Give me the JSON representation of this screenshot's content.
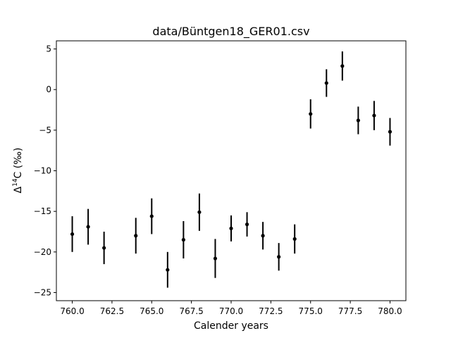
{
  "chart_data": {
    "type": "scatter",
    "title": "data/Büntgen18_GER01.csv",
    "xlabel": "Calender years",
    "ylabel_prefix": "Δ",
    "ylabel_sup": "14",
    "ylabel_suffix": "C (‰)",
    "xlim": [
      759.0,
      781.0
    ],
    "ylim": [
      -26.0,
      6.0
    ],
    "x_ticks": [
      760.0,
      762.5,
      765.0,
      767.5,
      770.0,
      772.5,
      775.0,
      777.5,
      780.0
    ],
    "x_tick_labels": [
      "760.0",
      "762.5",
      "765.0",
      "767.5",
      "770.0",
      "772.5",
      "775.0",
      "777.5",
      "780.0"
    ],
    "y_ticks": [
      5,
      0,
      -5,
      -10,
      -15,
      -20,
      -25
    ],
    "y_tick_labels": [
      "5",
      "0",
      "−5",
      "−10",
      "−15",
      "−20",
      "−25"
    ],
    "grid": false,
    "marker_color": "#000000",
    "points": [
      {
        "x": 760,
        "y": -17.8,
        "err": 2.2
      },
      {
        "x": 761,
        "y": -16.9,
        "err": 2.2
      },
      {
        "x": 762,
        "y": -19.5,
        "err": 2.0
      },
      {
        "x": 764,
        "y": -18.0,
        "err": 2.2
      },
      {
        "x": 765,
        "y": -15.6,
        "err": 2.2
      },
      {
        "x": 766,
        "y": -22.2,
        "err": 2.2
      },
      {
        "x": 767,
        "y": -18.5,
        "err": 2.3
      },
      {
        "x": 768,
        "y": -15.1,
        "err": 2.3
      },
      {
        "x": 769,
        "y": -20.8,
        "err": 2.4
      },
      {
        "x": 770,
        "y": -17.1,
        "err": 1.6
      },
      {
        "x": 771,
        "y": -16.6,
        "err": 1.5
      },
      {
        "x": 772,
        "y": -18.0,
        "err": 1.7
      },
      {
        "x": 773,
        "y": -20.6,
        "err": 1.7
      },
      {
        "x": 774,
        "y": -18.4,
        "err": 1.8
      },
      {
        "x": 775,
        "y": -3.0,
        "err": 1.8
      },
      {
        "x": 776,
        "y": 0.8,
        "err": 1.7
      },
      {
        "x": 777,
        "y": 2.9,
        "err": 1.8
      },
      {
        "x": 778,
        "y": -3.8,
        "err": 1.7
      },
      {
        "x": 779,
        "y": -3.2,
        "err": 1.8
      },
      {
        "x": 780,
        "y": -5.2,
        "err": 1.7
      }
    ]
  }
}
